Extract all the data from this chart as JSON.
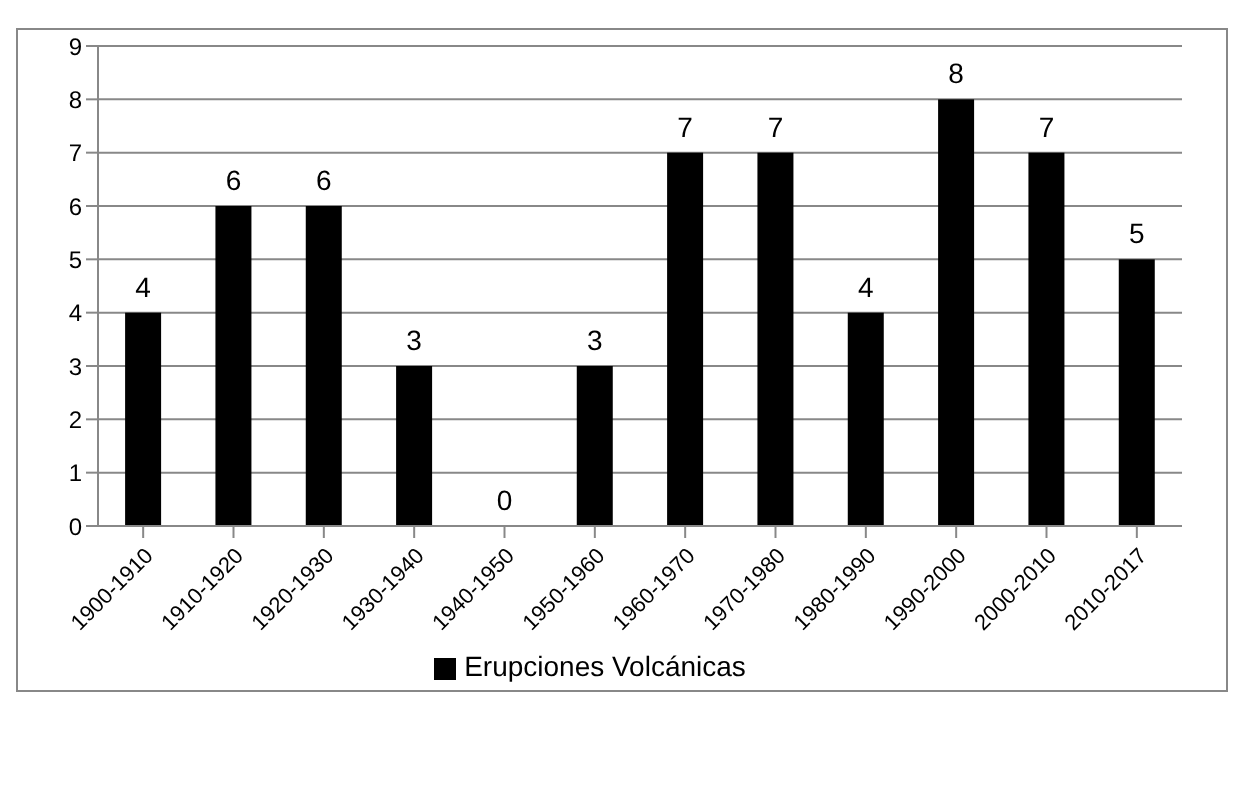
{
  "chart_data": {
    "type": "bar",
    "categories": [
      "1900-1910",
      "1910-1920",
      "1920-1930",
      "1930-1940",
      "1940-1950",
      "1950-1960",
      "1960-1970",
      "1970-1980",
      "1980-1990",
      "1990-2000",
      "2000-2010",
      "2010-2017"
    ],
    "series": [
      {
        "name": "Erupciones Volcánicas",
        "color": "#000000",
        "values": [
          4,
          6,
          6,
          3,
          0,
          3,
          7,
          7,
          4,
          8,
          7,
          5
        ]
      }
    ],
    "ylim": [
      0,
      9
    ],
    "yticks": [
      0,
      1,
      2,
      3,
      4,
      5,
      6,
      7,
      8,
      9
    ],
    "grid": "y",
    "legend": "bottom",
    "data_labels": true
  }
}
